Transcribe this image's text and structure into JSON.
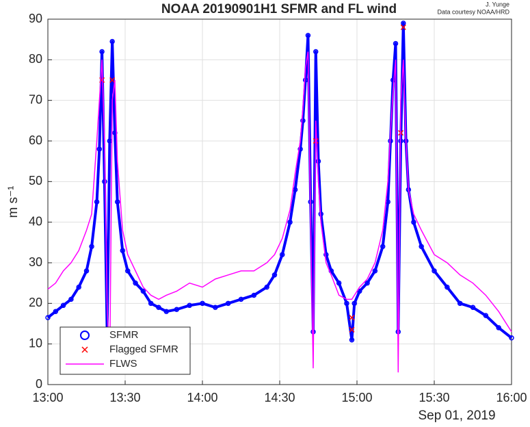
{
  "chart_data": {
    "type": "line",
    "title": "NOAA 20190901H1 SFMR and FL wind",
    "annotations": [
      "J. Yunge",
      "Data courtesy NOAA/HRD"
    ],
    "ylabel": "m s⁻¹",
    "xlabel": "Sep 01, 2019",
    "x": [
      "13:00",
      "13:03",
      "13:06",
      "13:09",
      "13:12",
      "13:15",
      "13:17",
      "13:19",
      "13:20",
      "13:21",
      "13:22",
      "13:23",
      "13:24",
      "13:25",
      "13:26",
      "13:27",
      "13:29",
      "13:31",
      "13:34",
      "13:37",
      "13:40",
      "13:43",
      "13:46",
      "13:50",
      "13:55",
      "14:00",
      "14:05",
      "14:10",
      "14:15",
      "14:20",
      "14:25",
      "14:28",
      "14:31",
      "14:34",
      "14:36",
      "14:38",
      "14:39",
      "14:40",
      "14:41",
      "14:42",
      "14:43",
      "14:44",
      "14:45",
      "14:46",
      "14:48",
      "14:50",
      "14:53",
      "14:56",
      "14:58",
      "14:59",
      "15:01",
      "15:04",
      "15:07",
      "15:10",
      "15:12",
      "15:13",
      "15:14",
      "15:15",
      "15:16",
      "15:17",
      "15:18",
      "15:19",
      "15:20",
      "15:22",
      "15:25",
      "15:30",
      "15:35",
      "15:40",
      "15:45",
      "15:50",
      "15:55",
      "16:00"
    ],
    "series": [
      {
        "name": "SFMR",
        "color": "#0000ff",
        "style": "circle",
        "values": [
          16.5,
          18,
          19.5,
          21,
          24,
          28,
          34,
          45,
          58,
          82,
          50,
          13,
          60,
          84.5,
          62,
          45,
          33,
          28,
          25,
          23,
          20,
          19,
          18,
          18.5,
          19.5,
          20,
          19,
          20,
          21,
          22,
          24,
          27,
          32,
          40,
          48,
          58,
          65,
          75,
          86,
          45,
          13,
          82,
          55,
          42,
          32,
          28,
          25,
          20,
          11,
          20,
          23,
          25,
          28,
          34,
          45,
          60,
          75,
          84,
          13,
          60,
          89,
          60,
          48,
          40,
          34,
          28,
          24,
          20,
          19,
          17,
          14,
          11.5
        ]
      },
      {
        "name": "Flagged SFMR",
        "color": "#ff0000",
        "style": "cross",
        "x": [
          "13:21",
          "13:25",
          "14:44",
          "14:58",
          "14:58",
          "15:17",
          "15:18"
        ],
        "values": [
          75,
          75,
          60,
          16.5,
          13.5,
          62,
          88
        ]
      },
      {
        "name": "FLWS",
        "color": "#ff00ff",
        "style": "line",
        "values": [
          23.5,
          25,
          28,
          30,
          33,
          38,
          42,
          60,
          70,
          80,
          60,
          20,
          3,
          70,
          75,
          55,
          38,
          32,
          28,
          24,
          22,
          21,
          22,
          23,
          25,
          24,
          26,
          27,
          28,
          28,
          30,
          32,
          36,
          43,
          52,
          60,
          68,
          78,
          82,
          40,
          4,
          65,
          50,
          40,
          30,
          27,
          22,
          21,
          21,
          22,
          24,
          26,
          30,
          38,
          50,
          62,
          72,
          80,
          3,
          70,
          80,
          60,
          48,
          42,
          38,
          32,
          30,
          27,
          25,
          22,
          18,
          13
        ]
      }
    ],
    "xlim": [
      "13:00",
      "16:00"
    ],
    "xticks": [
      "13:00",
      "13:30",
      "14:00",
      "14:30",
      "15:00",
      "15:30",
      "16:00"
    ],
    "ylim": [
      0,
      90
    ],
    "yticks": [
      0,
      10,
      20,
      30,
      40,
      50,
      60,
      70,
      80,
      90
    ],
    "grid": true,
    "legend": "lower left"
  }
}
